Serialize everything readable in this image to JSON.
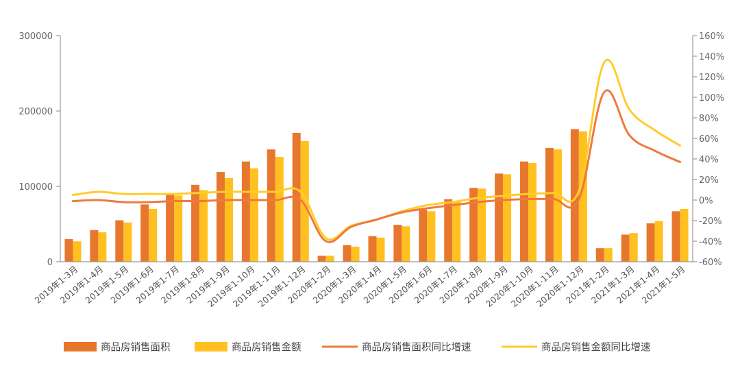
{
  "colors": {
    "area_bar": "#E8772E",
    "amount_bar": "#FFC020",
    "area_line": "#EE7A3E",
    "amount_line": "#FFCC2A"
  },
  "chart_data": {
    "type": "bar",
    "categories": [
      "2019年1-3月",
      "2019年1-4月",
      "2019年1-5月",
      "2019年1-6月",
      "2019年1-7月",
      "2019年1-8月",
      "2019年1-9月",
      "2019年1-10月",
      "2019年1-11月",
      "2019年1-12月",
      "2020年1-2月",
      "2020年1-3月",
      "2020年1-4月",
      "2020年1-5月",
      "2020年1-6月",
      "2020年1-7月",
      "2020年1-8月",
      "2020年1-9月",
      "2020年1-10月",
      "2020年1-11月",
      "2020年1-12月",
      "2021年1-2月",
      "2021年1-3月",
      "2021年1-4月",
      "2021年1-5月"
    ],
    "series": [
      {
        "name": "商品房销售面积",
        "kind": "bar",
        "axis": "left",
        "values": [
          30000,
          42000,
          55000,
          76000,
          89000,
          102000,
          119000,
          133000,
          149000,
          171000,
          8000,
          22000,
          34000,
          49000,
          69000,
          83000,
          98000,
          117000,
          133000,
          151000,
          176000,
          18000,
          36000,
          51000,
          67000
        ]
      },
      {
        "name": "商品房销售金额",
        "kind": "bar",
        "axis": "left",
        "values": [
          27000,
          39000,
          52000,
          70000,
          88000,
          95000,
          111000,
          124000,
          139000,
          160000,
          8000,
          20000,
          32000,
          47000,
          67000,
          80000,
          97000,
          116000,
          131000,
          149000,
          173000,
          18000,
          38000,
          54000,
          70000
        ]
      },
      {
        "name": "商品房销售面积同比增速",
        "kind": "line",
        "axis": "right",
        "values": [
          -1,
          0,
          -2,
          -2,
          -1,
          -1,
          0,
          0,
          0,
          0,
          -40,
          -26,
          -19,
          -12,
          -8,
          -5,
          -2,
          0,
          1,
          1,
          1,
          105,
          63,
          48,
          37
        ]
      },
      {
        "name": "商品房销售金额同比增速",
        "kind": "line",
        "axis": "right",
        "values": [
          5,
          8,
          6,
          6,
          6,
          7,
          8,
          8,
          8,
          8,
          -37,
          -25,
          -19,
          -11,
          -5,
          -2,
          2,
          4,
          6,
          7,
          9,
          134,
          88,
          68,
          53
        ]
      }
    ],
    "y_left": {
      "min": 0,
      "max": 300000,
      "ticks": [
        "0",
        "100000",
        "200000",
        "300000"
      ]
    },
    "y_right": {
      "min": -60,
      "max": 160,
      "ticks": [
        "-60%",
        "-40%",
        "-20%",
        "0%",
        "20%",
        "40%",
        "60%",
        "80%",
        "100%",
        "120%",
        "140%",
        "160%"
      ]
    },
    "grid": false,
    "legend_position": "bottom"
  }
}
